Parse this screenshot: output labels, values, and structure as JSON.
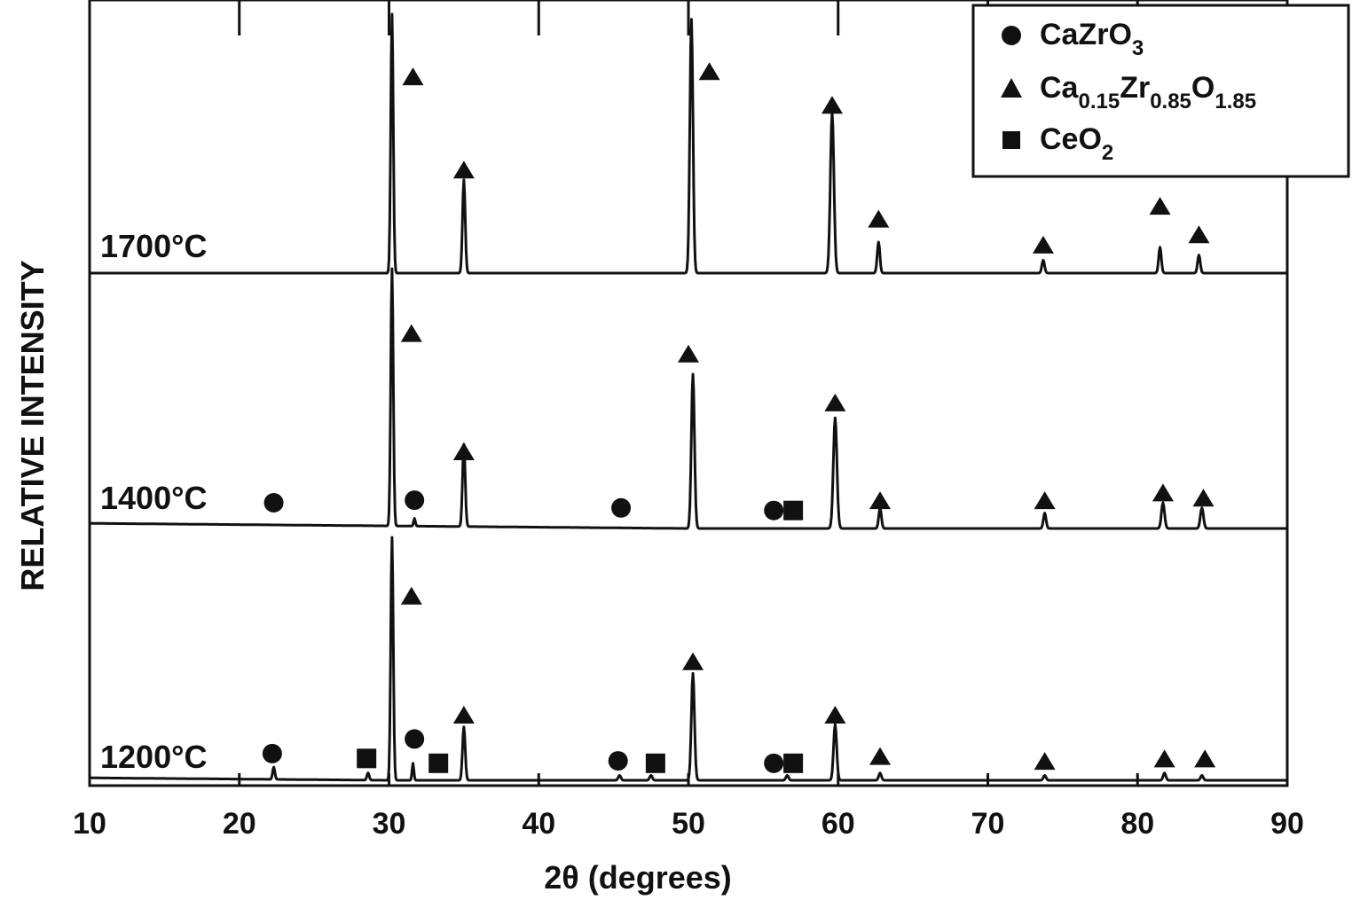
{
  "chart_data": {
    "type": "line",
    "title": "",
    "xlabel": "2θ (degrees)",
    "ylabel": "RELATIVE INTENSITY",
    "xlim": [
      10,
      90
    ],
    "x_ticks": [
      10,
      20,
      30,
      40,
      50,
      60,
      70,
      80,
      90
    ],
    "y_ticks_shown": false,
    "grid": false,
    "legend_position": "top-right",
    "legend": [
      {
        "symbol": "circle",
        "formula": "CaZrO3",
        "parts": [
          [
            "CaZrO",
            false
          ],
          [
            "3",
            true
          ]
        ]
      },
      {
        "symbol": "triangle",
        "formula": "Ca0.15Zr0.85O1.85",
        "parts": [
          [
            "Ca",
            false
          ],
          [
            "0.15",
            true
          ],
          [
            "Zr",
            false
          ],
          [
            "0.85",
            true
          ],
          [
            "O",
            false
          ],
          [
            "1.85",
            true
          ]
        ]
      },
      {
        "symbol": "square",
        "formula": "CeO2",
        "parts": [
          [
            "CeO",
            false
          ],
          [
            "2",
            true
          ]
        ]
      }
    ],
    "series": [
      {
        "name": "1700°C",
        "baseline": [
          0.0,
          0.0,
          0.0,
          0.0,
          0.0
        ],
        "peaks": [
          {
            "x": 30.2,
            "height": 1.0,
            "width": 0.28
          },
          {
            "x": 35.0,
            "height": 0.36,
            "width": 0.3
          },
          {
            "x": 50.2,
            "height": 0.98,
            "width": 0.35
          },
          {
            "x": 59.6,
            "height": 0.62,
            "width": 0.4
          },
          {
            "x": 62.7,
            "height": 0.12,
            "width": 0.3
          },
          {
            "x": 73.7,
            "height": 0.05,
            "width": 0.3
          },
          {
            "x": 81.5,
            "height": 0.1,
            "width": 0.3
          },
          {
            "x": 84.1,
            "height": 0.07,
            "width": 0.3
          }
        ],
        "markers": [
          {
            "symbol": "triangle",
            "x": 31.6,
            "height": 0.76
          },
          {
            "symbol": "triangle",
            "x": 35.0,
            "height": 0.4
          },
          {
            "symbol": "triangle",
            "x": 51.4,
            "height": 0.78
          },
          {
            "symbol": "triangle",
            "x": 59.6,
            "height": 0.65
          },
          {
            "symbol": "triangle",
            "x": 62.7,
            "height": 0.21
          },
          {
            "symbol": "triangle",
            "x": 73.7,
            "height": 0.11
          },
          {
            "symbol": "triangle",
            "x": 81.5,
            "height": 0.26
          },
          {
            "symbol": "triangle",
            "x": 84.1,
            "height": 0.15
          }
        ]
      },
      {
        "name": "1400°C",
        "baseline": [
          0.02,
          0.01,
          0.0,
          0.0,
          0.0
        ],
        "peaks": [
          {
            "x": 30.2,
            "height": 1.0,
            "width": 0.28
          },
          {
            "x": 31.7,
            "height": 0.03,
            "width": 0.2
          },
          {
            "x": 35.0,
            "height": 0.32,
            "width": 0.3
          },
          {
            "x": 50.3,
            "height": 0.6,
            "width": 0.35
          },
          {
            "x": 59.8,
            "height": 0.43,
            "width": 0.4
          },
          {
            "x": 62.8,
            "height": 0.08,
            "width": 0.3
          },
          {
            "x": 73.8,
            "height": 0.06,
            "width": 0.3
          },
          {
            "x": 81.7,
            "height": 0.1,
            "width": 0.35
          },
          {
            "x": 84.3,
            "height": 0.08,
            "width": 0.35
          }
        ],
        "markers": [
          {
            "symbol": "circle",
            "x": 22.3,
            "height": 0.1
          },
          {
            "symbol": "triangle",
            "x": 31.5,
            "height": 0.76
          },
          {
            "symbol": "circle",
            "x": 31.7,
            "height": 0.11
          },
          {
            "symbol": "triangle",
            "x": 35.0,
            "height": 0.3
          },
          {
            "symbol": "circle",
            "x": 45.5,
            "height": 0.08
          },
          {
            "symbol": "triangle",
            "x": 50.0,
            "height": 0.68
          },
          {
            "symbol": "circle",
            "x": 55.7,
            "height": 0.07
          },
          {
            "symbol": "square",
            "x": 57.0,
            "height": 0.07
          },
          {
            "symbol": "triangle",
            "x": 59.8,
            "height": 0.49
          },
          {
            "symbol": "triangle",
            "x": 62.8,
            "height": 0.11
          },
          {
            "symbol": "triangle",
            "x": 73.8,
            "height": 0.11
          },
          {
            "symbol": "triangle",
            "x": 81.7,
            "height": 0.14
          },
          {
            "symbol": "triangle",
            "x": 84.4,
            "height": 0.12
          }
        ]
      },
      {
        "name": "1200°C",
        "baseline": [
          0.01,
          0.0,
          0.0,
          0.0,
          0.0
        ],
        "peaks": [
          {
            "x": 22.3,
            "height": 0.05,
            "width": 0.25
          },
          {
            "x": 28.6,
            "height": 0.03,
            "width": 0.25
          },
          {
            "x": 30.2,
            "height": 1.0,
            "width": 0.28
          },
          {
            "x": 31.6,
            "height": 0.07,
            "width": 0.2
          },
          {
            "x": 35.0,
            "height": 0.22,
            "width": 0.3
          },
          {
            "x": 45.4,
            "height": 0.02,
            "width": 0.3
          },
          {
            "x": 47.5,
            "height": 0.02,
            "width": 0.3
          },
          {
            "x": 50.3,
            "height": 0.44,
            "width": 0.35
          },
          {
            "x": 56.6,
            "height": 0.02,
            "width": 0.3
          },
          {
            "x": 59.8,
            "height": 0.23,
            "width": 0.35
          },
          {
            "x": 62.8,
            "height": 0.03,
            "width": 0.3
          },
          {
            "x": 73.8,
            "height": 0.02,
            "width": 0.3
          },
          {
            "x": 81.8,
            "height": 0.03,
            "width": 0.3
          },
          {
            "x": 84.3,
            "height": 0.02,
            "width": 0.3
          }
        ],
        "markers": [
          {
            "symbol": "circle",
            "x": 22.2,
            "height": 0.11
          },
          {
            "symbol": "square",
            "x": 28.5,
            "height": 0.09
          },
          {
            "symbol": "triangle",
            "x": 31.5,
            "height": 0.76
          },
          {
            "symbol": "circle",
            "x": 31.7,
            "height": 0.17
          },
          {
            "symbol": "square",
            "x": 33.3,
            "height": 0.07
          },
          {
            "symbol": "triangle",
            "x": 35.0,
            "height": 0.27
          },
          {
            "symbol": "circle",
            "x": 45.3,
            "height": 0.08
          },
          {
            "symbol": "square",
            "x": 47.8,
            "height": 0.07
          },
          {
            "symbol": "triangle",
            "x": 50.3,
            "height": 0.49
          },
          {
            "symbol": "circle",
            "x": 55.7,
            "height": 0.07
          },
          {
            "symbol": "square",
            "x": 57.0,
            "height": 0.07
          },
          {
            "symbol": "triangle",
            "x": 59.8,
            "height": 0.27
          },
          {
            "symbol": "triangle",
            "x": 62.8,
            "height": 0.1
          },
          {
            "symbol": "triangle",
            "x": 73.8,
            "height": 0.08
          },
          {
            "symbol": "triangle",
            "x": 81.8,
            "height": 0.09
          },
          {
            "symbol": "triangle",
            "x": 84.5,
            "height": 0.09
          }
        ]
      }
    ]
  }
}
